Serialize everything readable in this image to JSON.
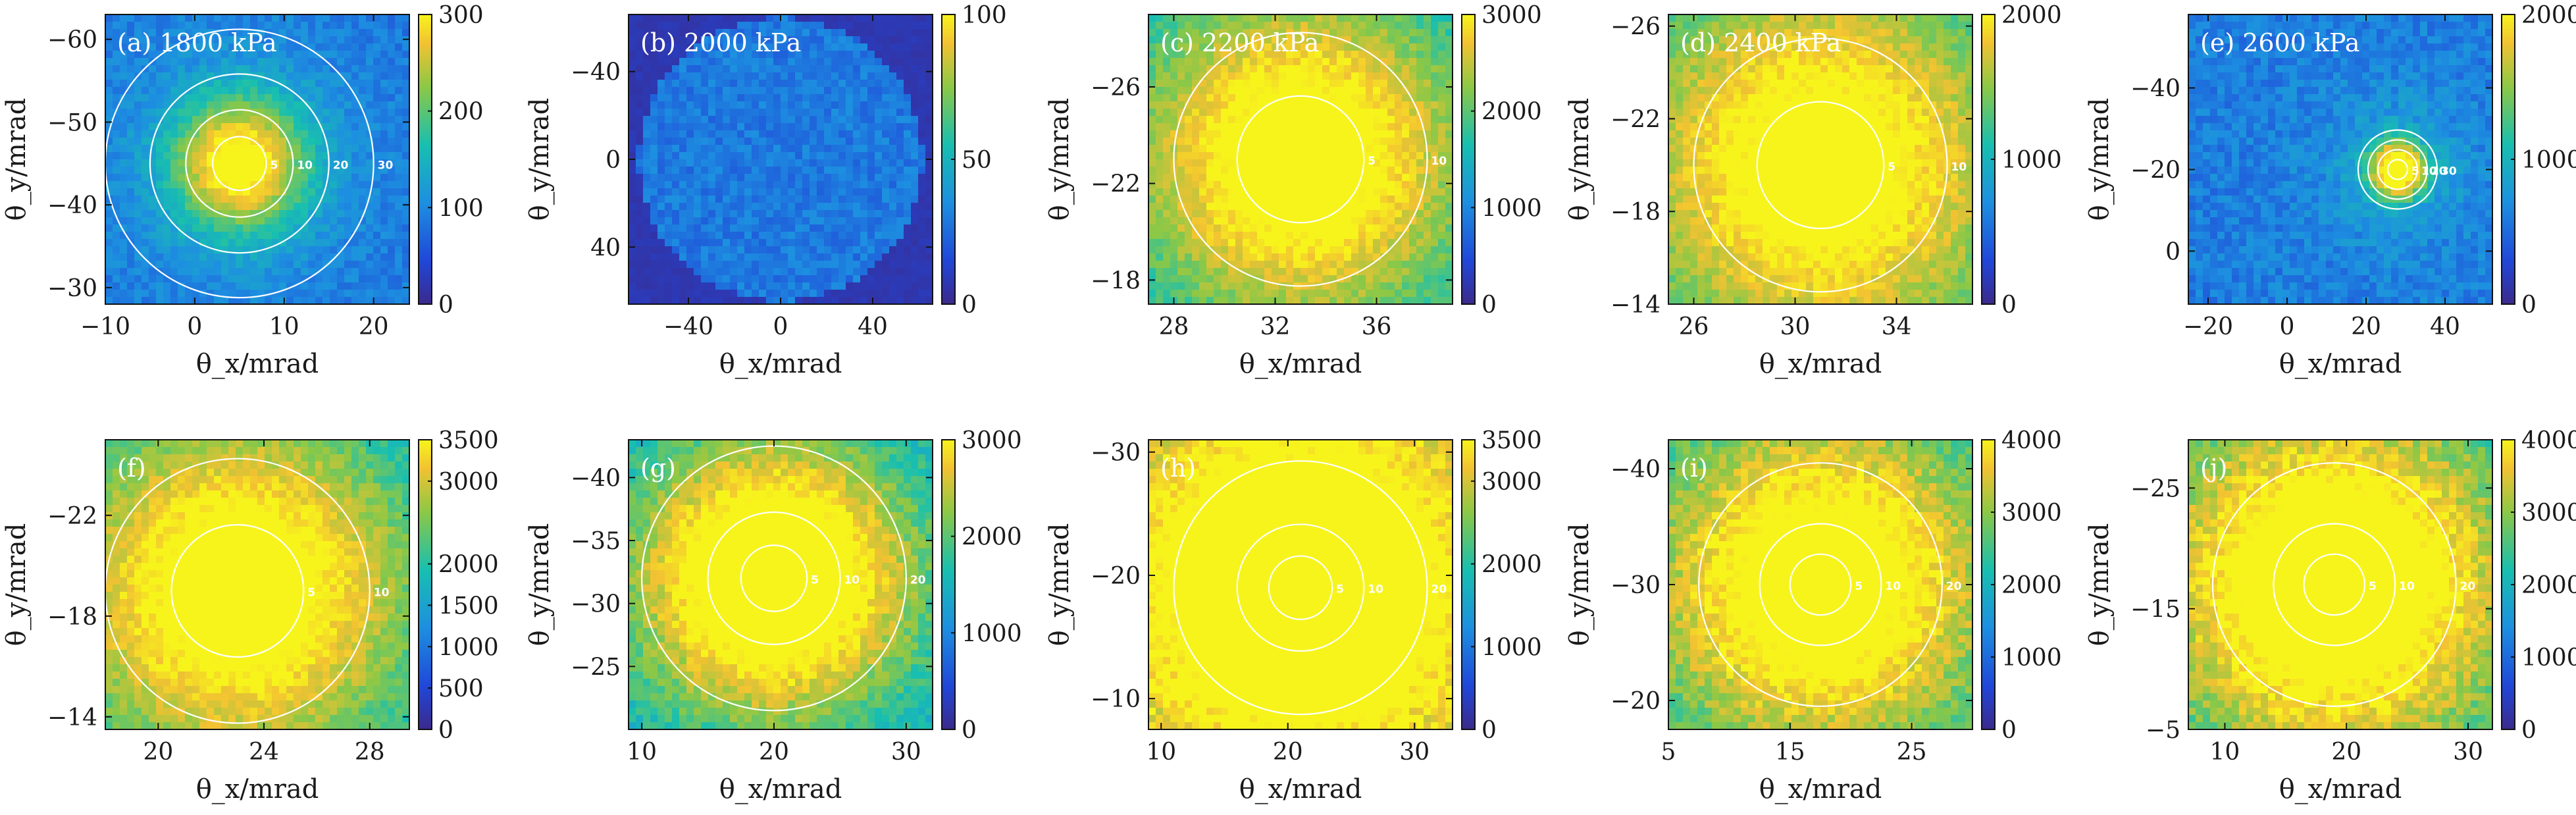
{
  "chart_data": [
    {
      "type": "heatmap",
      "title": "(a) 1800 kPa",
      "xlabel": "θ_x/mrad",
      "ylabel": "θ_y/mrad",
      "xlim": [
        -10,
        24
      ],
      "ylim": [
        -63,
        -28
      ],
      "y_inverted": true,
      "xticks": [
        "−10",
        "0",
        "10",
        "20"
      ],
      "yticks": [
        "−60",
        "−50",
        "−40",
        "−30"
      ],
      "colorbar": {
        "min": 0,
        "max": 300,
        "ticks": [
          "0",
          "100",
          "200",
          "300"
        ]
      },
      "center": [
        5,
        -45
      ],
      "spot_sigma": 3.2,
      "spot_peak": 0.75,
      "background_level": 0.25,
      "rings": [
        {
          "label": "5",
          "radius": 3
        },
        {
          "label": "10",
          "radius": 6
        },
        {
          "label": "20",
          "radius": 10
        },
        {
          "label": "30",
          "radius": 15
        }
      ]
    },
    {
      "type": "heatmap",
      "title": "(b) 2000 kPa",
      "xlabel": "θ_x/mrad",
      "ylabel": "θ_y/mrad",
      "xlim": [
        -66,
        66
      ],
      "ylim": [
        -66,
        66
      ],
      "y_inverted": true,
      "xticks": [
        "−40",
        "0",
        "40"
      ],
      "yticks": [
        "−40",
        "0",
        "40"
      ],
      "colorbar": {
        "min": 0,
        "max": 100,
        "ticks": [
          "0",
          "50",
          "100"
        ]
      },
      "center": [
        0,
        0
      ],
      "spot_sigma": 0,
      "spot_peak": 0,
      "background_level": 0.18,
      "rings": []
    },
    {
      "type": "heatmap",
      "title": "(c) 2200 kPa",
      "xlabel": "θ_x/mrad",
      "ylabel": "θ_y/mrad",
      "xlim": [
        27,
        39
      ],
      "ylim": [
        -29,
        -17
      ],
      "y_inverted": true,
      "xticks": [
        "28",
        "32",
        "36"
      ],
      "yticks": [
        "−26",
        "−22",
        "−18"
      ],
      "colorbar": {
        "min": 0,
        "max": 3000,
        "ticks": [
          "0",
          "1000",
          "2000",
          "3000"
        ]
      },
      "center": [
        33,
        -23
      ],
      "spot_sigma": 3.0,
      "spot_peak": 0.75,
      "background_level": 0.3,
      "rings": [
        {
          "label": "5",
          "radius": 2.5
        },
        {
          "label": "10",
          "radius": 5
        }
      ]
    },
    {
      "type": "heatmap",
      "title": "(d) 2400 kPa",
      "xlabel": "θ_x/mrad",
      "ylabel": "θ_y/mrad",
      "xlim": [
        25,
        37
      ],
      "ylim": [
        -26.5,
        -14
      ],
      "y_inverted": true,
      "xticks": [
        "26",
        "30",
        "34"
      ],
      "yticks": [
        "−26",
        "−22",
        "−18",
        "−14"
      ],
      "colorbar": {
        "min": 0,
        "max": 2000,
        "ticks": [
          "0",
          "1000",
          "2000"
        ]
      },
      "center": [
        31,
        -20
      ],
      "spot_sigma": 3.5,
      "spot_peak": 0.72,
      "background_level": 0.3,
      "rings": [
        {
          "label": "5",
          "radius": 2.5
        },
        {
          "label": "10",
          "radius": 5
        }
      ]
    },
    {
      "type": "heatmap",
      "title": "(e) 2600 kPa",
      "xlabel": "θ_x/mrad",
      "ylabel": "θ_y/mrad",
      "xlim": [
        -25,
        52
      ],
      "ylim": [
        -58,
        13
      ],
      "y_inverted": true,
      "xticks": [
        "−20",
        "0",
        "20",
        "40"
      ],
      "yticks": [
        "−40",
        "−20",
        "0"
      ],
      "colorbar": {
        "min": 0,
        "max": 2000,
        "ticks": [
          "0",
          "1000",
          "2000"
        ]
      },
      "center": [
        28,
        -20
      ],
      "spot_sigma": 3.0,
      "spot_peak": 0.9,
      "background_level": 0.3,
      "rings": [
        {
          "label": "5",
          "radius": 2.5
        },
        {
          "label": "10",
          "radius": 5
        },
        {
          "label": "20",
          "radius": 7.5
        },
        {
          "label": "30",
          "radius": 10
        }
      ]
    },
    {
      "type": "heatmap",
      "title": "(f)",
      "xlabel": "θ_x/mrad",
      "ylabel": "θ_y/mrad",
      "xlim": [
        18,
        29.5
      ],
      "ylim": [
        -25,
        -13.5
      ],
      "y_inverted": true,
      "xticks": [
        "20",
        "24",
        "28"
      ],
      "yticks": [
        "−22",
        "−18",
        "−14"
      ],
      "colorbar": {
        "min": 0,
        "max": 3500,
        "ticks": [
          "0",
          "500",
          "1000",
          "1500",
          "2000",
          "3000",
          "3500"
        ]
      },
      "center": [
        23,
        -19
      ],
      "spot_sigma": 3.0,
      "spot_peak": 0.75,
      "background_level": 0.3,
      "rings": [
        {
          "label": "5",
          "radius": 2.5
        },
        {
          "label": "10",
          "radius": 5
        }
      ]
    },
    {
      "type": "heatmap",
      "title": "(g)",
      "xlabel": "θ_x/mrad",
      "ylabel": "θ_y/mrad",
      "xlim": [
        9,
        32
      ],
      "ylim": [
        -43,
        -20
      ],
      "y_inverted": true,
      "xticks": [
        "10",
        "20",
        "30"
      ],
      "yticks": [
        "−40",
        "−35",
        "−30",
        "−25"
      ],
      "colorbar": {
        "min": 0,
        "max": 3000,
        "ticks": [
          "0",
          "1000",
          "2000",
          "3000"
        ]
      },
      "center": [
        20,
        -32
      ],
      "spot_sigma": 4.5,
      "spot_peak": 0.85,
      "background_level": 0.35,
      "rings": [
        {
          "label": "5",
          "radius": 2.5
        },
        {
          "label": "10",
          "radius": 5
        },
        {
          "label": "20",
          "radius": 10
        }
      ]
    },
    {
      "type": "heatmap",
      "title": "(h)",
      "xlabel": "θ_x/mrad",
      "ylabel": "θ_y/mrad",
      "xlim": [
        9,
        33
      ],
      "ylim": [
        -31,
        -7.5
      ],
      "y_inverted": true,
      "xticks": [
        "10",
        "20",
        "30"
      ],
      "yticks": [
        "−30",
        "−20",
        "−10"
      ],
      "colorbar": {
        "min": 0,
        "max": 3500,
        "ticks": [
          "0",
          "1000",
          "2000",
          "3000",
          "3500"
        ]
      },
      "center": [
        21,
        -19
      ],
      "spot_sigma": 8.0,
      "spot_peak": 0.75,
      "background_level": 0.42,
      "rings": [
        {
          "label": "5",
          "radius": 2.5
        },
        {
          "label": "10",
          "radius": 5
        },
        {
          "label": "20",
          "radius": 10
        }
      ]
    },
    {
      "type": "heatmap",
      "title": "(i)",
      "xlabel": "θ_x/mrad",
      "ylabel": "θ_y/mrad",
      "xlim": [
        5,
        30
      ],
      "ylim": [
        -42.5,
        -17.5
      ],
      "y_inverted": true,
      "xticks": [
        "5",
        "15",
        "25"
      ],
      "yticks": [
        "−40",
        "−30",
        "−20"
      ],
      "colorbar": {
        "min": 0,
        "max": 4000,
        "ticks": [
          "0",
          "1000",
          "2000",
          "3000",
          "4000"
        ]
      },
      "center": [
        17.5,
        -30
      ],
      "spot_sigma": 6.0,
      "spot_peak": 0.72,
      "background_level": 0.38,
      "rings": [
        {
          "label": "5",
          "radius": 2.5
        },
        {
          "label": "10",
          "radius": 5
        },
        {
          "label": "20",
          "radius": 10
        }
      ]
    },
    {
      "type": "heatmap",
      "title": "(j)",
      "xlabel": "θ_x/mrad",
      "ylabel": "θ_y/mrad",
      "xlim": [
        7,
        32
      ],
      "ylim": [
        -29,
        -5
      ],
      "y_inverted": true,
      "xticks": [
        "10",
        "20",
        "30"
      ],
      "yticks": [
        "−25",
        "−15",
        "−5"
      ],
      "colorbar": {
        "min": 0,
        "max": 4000,
        "ticks": [
          "0",
          "1000",
          "2000",
          "3000",
          "4000"
        ]
      },
      "center": [
        19,
        -17
      ],
      "spot_sigma": 6.0,
      "spot_peak": 0.78,
      "background_level": 0.4,
      "rings": [
        {
          "label": "5",
          "radius": 2.5
        },
        {
          "label": "10",
          "radius": 5
        },
        {
          "label": "20",
          "radius": 10
        }
      ]
    }
  ]
}
